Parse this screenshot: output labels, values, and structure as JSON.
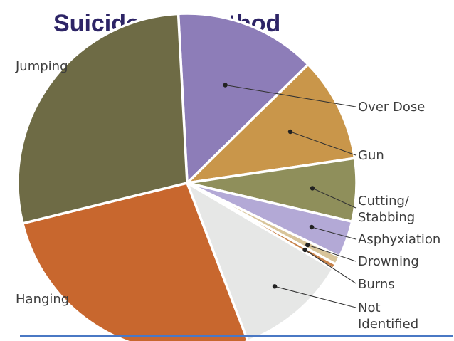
{
  "chart_data": {
    "type": "pie",
    "title": "Suicides by Method",
    "start_angle_deg": 93,
    "direction": "clockwise",
    "slices": [
      {
        "label": "Over Dose",
        "value": 13.5,
        "color": "#8d7db8",
        "ann": "o"
      },
      {
        "label": "Gun",
        "value": 10.0,
        "color": "#c9964a",
        "ann": "g"
      },
      {
        "label": "Cutting/Stabbing",
        "value": 6.0,
        "color": "#8f8f5b",
        "ann": "c"
      },
      {
        "label": "Asphyxiation",
        "value": 3.5,
        "color": "#b3a9d6",
        "ann": "a"
      },
      {
        "label": "Drowning",
        "value": 0.8,
        "color": "#d8c49a",
        "ann": "d"
      },
      {
        "label": "Burns",
        "value": 0.5,
        "color": "#c7824a",
        "ann": "b"
      },
      {
        "label": "Not Identified",
        "value": 10.7,
        "color": "#e6e7e6",
        "ann": "n"
      },
      {
        "label": "Hanging",
        "value": 27.0,
        "color": "#c8672e",
        "ann": "h"
      },
      {
        "label": "Jumping",
        "value": 28.0,
        "color": "#6e6b45",
        "ann": "j"
      }
    ],
    "label_lines": {
      "jumping": "Jumping",
      "hanging": "Hanging",
      "over_dose": "Over Dose",
      "gun": "Gun",
      "cutting_1": "Cutting/",
      "cutting_2": "Stabbing",
      "asphyxiation": "Asphyxiation",
      "drowning": "Drowning",
      "burns": "Burns",
      "not_identified_1": "Not",
      "not_identified_2": "Identified"
    }
  }
}
